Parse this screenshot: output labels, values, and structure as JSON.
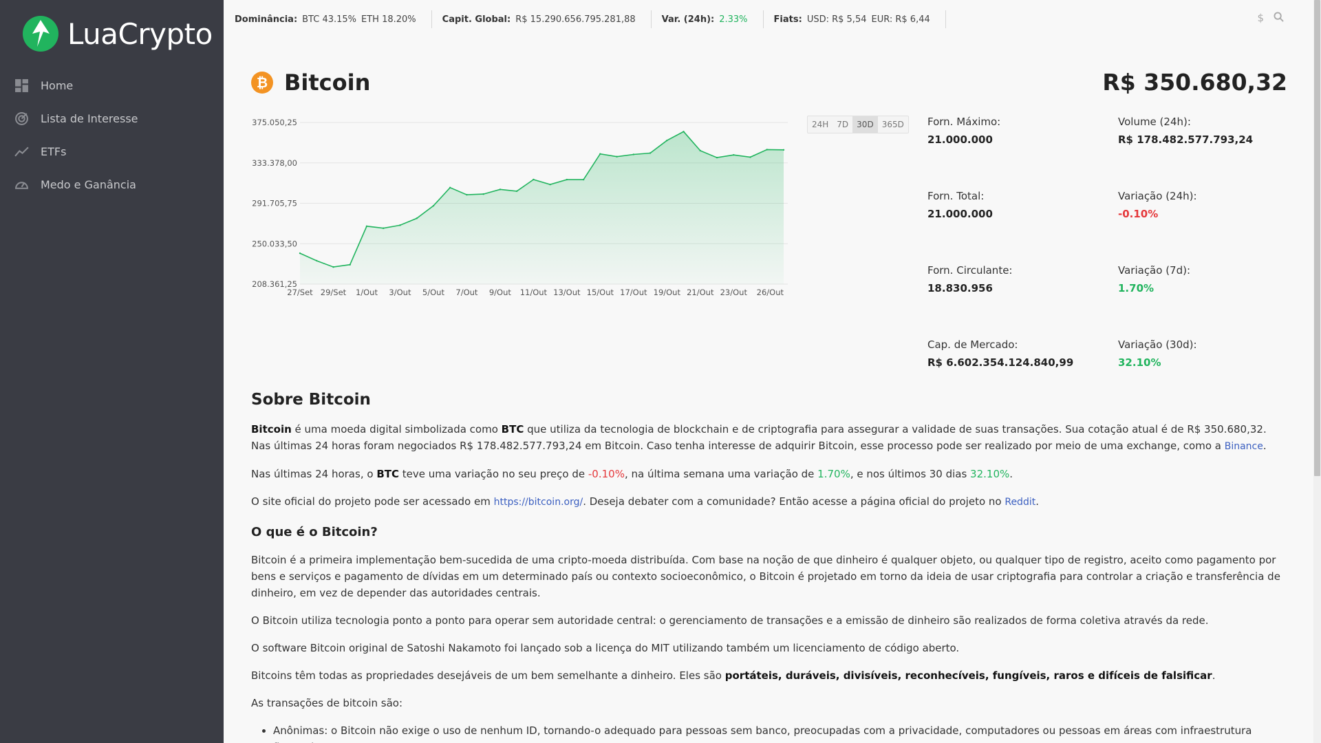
{
  "brand": {
    "name": "LuaCrypto",
    "accent": "#21b45e"
  },
  "sidebar": {
    "items": [
      {
        "label": "Home",
        "icon": "dashboard-icon"
      },
      {
        "label": "Lista de Interesse",
        "icon": "target-icon"
      },
      {
        "label": "ETFs",
        "icon": "trend-line-icon"
      },
      {
        "label": "Medo e Ganância",
        "icon": "gauge-icon"
      }
    ]
  },
  "topbar": {
    "dominance_label": "Dominância:",
    "dominance_btc": "BTC 43.15%",
    "dominance_eth": "ETH 18.20%",
    "cap_label": "Capit. Global:",
    "cap_value": "R$ 15.290.656.795.281,88",
    "var_label": "Var. (24h):",
    "var_value": "2.33%",
    "fiats_label": "Fiats:",
    "fiat_usd": "USD: R$ 5,54",
    "fiat_eur": "EUR: R$ 6,44",
    "currency_icon": "$"
  },
  "coin": {
    "name": "Bitcoin",
    "logo_glyph": "₿",
    "price": "R$ 350.680,32",
    "ranges": [
      "24H",
      "7D",
      "30D",
      "365D"
    ],
    "active_range": "30D"
  },
  "stats": {
    "max_supply_label": "Forn. Máximo:",
    "max_supply": "21.000.000",
    "volume_label": "Volume (24h):",
    "volume": "R$ 178.482.577.793,24",
    "total_supply_label": "Forn. Total:",
    "total_supply": "21.000.000",
    "var24_label": "Variação (24h):",
    "var24": "-0.10%",
    "circ_supply_label": "Forn. Circulante:",
    "circ_supply": "18.830.956",
    "var7_label": "Variação (7d):",
    "var7": "1.70%",
    "mcap_label": "Cap. de Mercado:",
    "mcap": "R$ 6.602.354.124.840,99",
    "var30_label": "Variação (30d):",
    "var30": "32.10%"
  },
  "chart_data": {
    "type": "area",
    "x": [
      "27/Set",
      "28/Set",
      "29/Set",
      "30/Set",
      "1/Out",
      "2/Out",
      "3/Out",
      "4/Out",
      "5/Out",
      "6/Out",
      "7/Out",
      "8/Out",
      "9/Out",
      "10/Out",
      "11/Out",
      "12/Out",
      "13/Out",
      "14/Out",
      "15/Out",
      "16/Out",
      "17/Out",
      "18/Out",
      "19/Out",
      "20/Out",
      "21/Out",
      "22/Out",
      "23/Out",
      "24/Out",
      "25/Out",
      "26/Out"
    ],
    "tick_labels": [
      "27/Set",
      "29/Set",
      "1/Out",
      "3/Out",
      "5/Out",
      "7/Out",
      "9/Out",
      "11/Out",
      "13/Out",
      "15/Out",
      "17/Out",
      "19/Out",
      "21/Out",
      "23/Out",
      "26/Out"
    ],
    "y_ticks": [
      "375.050,25",
      "333.378,00",
      "291.705,75",
      "250.033,50",
      "208.361,25"
    ],
    "ylim": [
      208361.25,
      375050.25
    ],
    "series": [
      {
        "values": [
          240200,
          232500,
          226000,
          228400,
          268100,
          266000,
          269100,
          276200,
          289100,
          307900,
          300500,
          301200,
          306000,
          304200,
          316200,
          311100,
          316100,
          316100,
          342600,
          339800,
          342100,
          343500,
          356500,
          365600,
          346000,
          338800,
          341600,
          339300,
          347100,
          346800
        ]
      }
    ],
    "line_color": "#21b45e",
    "grid": true
  },
  "about": {
    "title": "Sobre Bitcoin",
    "p1_strong": "Bitcoin",
    "p1_a": " é uma moeda digital simbolizada como ",
    "p1_sym": "BTC",
    "p1_b": " que utiliza da tecnologia de blockchain e de criptografia para assegurar a validade de suas transações. Sua cotação atual é de R$ 350.680,32. Nas últimas 24 horas foram negociados R$ 178.482.577.793,24 em Bitcoin. Caso tenha interesse de adquirir Bitcoin, esse processo pode ser realizado por meio de uma exchange, como a ",
    "p1_link": "Binance",
    "p1_end": ".",
    "p2_a": "Nas últimas 24 horas, o ",
    "p2_sym": "BTC",
    "p2_b": " teve uma variação no seu preço de ",
    "p2_v1": "-0.10%",
    "p2_c": ", na última semana uma variação de ",
    "p2_v2": "1.70%",
    "p2_d": ", e nos últimos 30 dias ",
    "p2_v3": "32.10%",
    "p2_end": ".",
    "p3_a": "O site oficial do projeto pode ser acessado em ",
    "p3_link1": "https://bitcoin.org/",
    "p3_b": ". Deseja debater com a comunidade? Então acesse a página oficial do projeto no ",
    "p3_link2": "Reddit",
    "p3_end": ".",
    "h_what": "O que é o Bitcoin?",
    "p4": "Bitcoin é a primeira implementação bem-sucedida de uma cripto-moeda distribuída. Com base na noção de que dinheiro é qualquer objeto, ou qualquer tipo de registro, aceito como pagamento por bens e serviços e pagamento de dívidas em um determinado país ou contexto socioeconômico, o Bitcoin é projetado em torno da ideia de usar criptografia para controlar a criação e transferência de dinheiro, em vez de depender das autoridades centrais.",
    "p5": "O Bitcoin utiliza tecnologia ponto a ponto para operar sem autoridade central: o gerenciamento de transações e a emissão de dinheiro são realizados de forma coletiva através da rede.",
    "p6": "O software Bitcoin original de Satoshi Nakamoto foi lançado sob a licença do MIT utilizando também um licenciamento de código aberto.",
    "p7_a": "Bitcoins têm todas as propriedades desejáveis de um bem semelhante a dinheiro. Eles são ",
    "p7_strong": "portáteis, duráveis, divisíveis, reconhecíveis, fungíveis, raros e difíceis de falsificar",
    "p7_end": ".",
    "p8": "As transações de bitcoin são:",
    "li1": "Anônimas: o Bitcoin não exige o uso de nenhum ID, tornando-o adequado para pessoas sem banco, preocupadas com a privacidade, computadores ou pessoas em áreas com infraestrutura financeira"
  }
}
